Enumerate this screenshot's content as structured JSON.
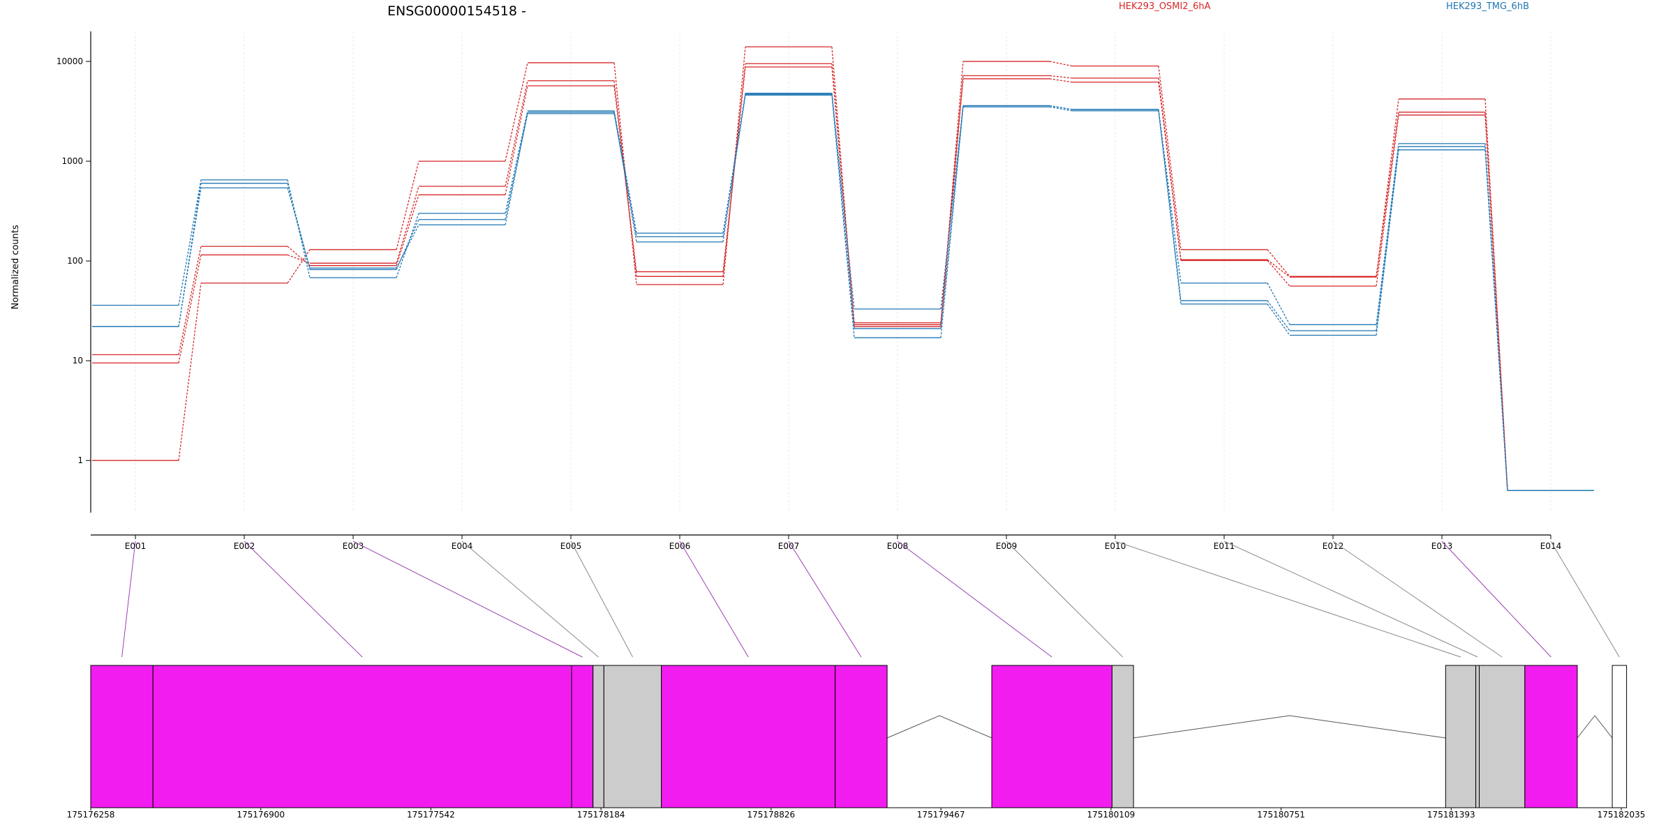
{
  "colors": {
    "osmi": "#d62728",
    "tmg": "#1f77b4",
    "exon_fill": "#f21cf0",
    "other_fill": "#cccccc",
    "grid": "#e8e8e8",
    "axis": "#000000",
    "connector_gray": "#888888",
    "connector_purple": "#9b3fb5",
    "intron": "#555555"
  },
  "chart_data": {
    "type": "line",
    "title": "ENSG00000154518 -",
    "ylabel": "Normalized counts",
    "yscale": "log",
    "ylim": [
      0.3,
      20000
    ],
    "yticks": [
      1,
      10,
      100,
      1000,
      10000
    ],
    "categories": [
      "E001",
      "E002",
      "E003",
      "E004",
      "E005",
      "E006",
      "E007",
      "E008",
      "E009",
      "E010",
      "E011",
      "E012",
      "E013",
      "E014"
    ],
    "legend": [
      {
        "label": "HEK293_OSMI2_6hA",
        "color": "#d62728"
      },
      {
        "label": "HEK293_TMG_6hB",
        "color": "#1f77b4"
      }
    ],
    "series": [
      {
        "group": "HEK293_OSMI2_6hA",
        "values": [
          1,
          60,
          130,
          1000,
          9700,
          58,
          14000,
          22,
          10000,
          9000,
          130,
          70,
          4200,
          0.5
        ]
      },
      {
        "group": "HEK293_OSMI2_6hA",
        "values": [
          9.5,
          115,
          95,
          560,
          6400,
          70,
          9500,
          23,
          7200,
          6800,
          103,
          69,
          3100,
          0.5
        ]
      },
      {
        "group": "HEK293_OSMI2_6hA",
        "values": [
          11.5,
          140,
          90,
          460,
          5700,
          78,
          8800,
          24,
          6700,
          6200,
          101,
          56,
          2900,
          0.5
        ]
      },
      {
        "group": "HEK293_TMG_6hB",
        "values": [
          36,
          650,
          68,
          300,
          3200,
          190,
          4800,
          33,
          3600,
          3300,
          60,
          23,
          1500,
          0.5
        ]
      },
      {
        "group": "HEK293_TMG_6hB",
        "values": [
          22,
          600,
          82,
          260,
          3000,
          175,
          4700,
          21,
          3600,
          3300,
          40,
          20,
          1400,
          0.5
        ]
      },
      {
        "group": "HEK293_TMG_6hB",
        "values": [
          22,
          540,
          85,
          230,
          3100,
          155,
          4600,
          17,
          3500,
          3200,
          37,
          18,
          1300,
          0.5
        ]
      }
    ],
    "genomic_ticks": [
      "175176258",
      "175176900",
      "175177542",
      "175178184",
      "175178826",
      "175179467",
      "175180109",
      "175180751",
      "175181393",
      "175182035"
    ],
    "gene_model": {
      "start": 175176258,
      "end": 175182035,
      "blocks": [
        {
          "start": 175176258,
          "end": 175176493,
          "type": "exon",
          "exon": "E001"
        },
        {
          "start": 175176493,
          "end": 175178073,
          "type": "exon",
          "exon": "E002"
        },
        {
          "start": 175178073,
          "end": 175178154,
          "type": "exon",
          "exon": "E003"
        },
        {
          "start": 175178154,
          "end": 175178195,
          "type": "other",
          "exon": "E004"
        },
        {
          "start": 175178195,
          "end": 175178412,
          "type": "other",
          "exon": "E005"
        },
        {
          "start": 175178412,
          "end": 175179068,
          "type": "exon",
          "exon": "E006"
        },
        {
          "start": 175179068,
          "end": 175179264,
          "type": "exon",
          "exon": "E007"
        },
        {
          "start": 175179659,
          "end": 175180113,
          "type": "exon",
          "exon": "E008"
        },
        {
          "start": 175180113,
          "end": 175180194,
          "type": "other",
          "exon": "E009"
        },
        {
          "start": 175181372,
          "end": 175181486,
          "type": "other",
          "exon": "E010"
        },
        {
          "start": 175181486,
          "end": 175181499,
          "type": "other",
          "exon": "E011"
        },
        {
          "start": 175181499,
          "end": 175181671,
          "type": "other",
          "exon": "E012"
        },
        {
          "start": 175181671,
          "end": 175181869,
          "type": "exon",
          "exon": "E013"
        },
        {
          "start": 175182001,
          "end": 175182055,
          "type": "empty",
          "exon": "E014"
        }
      ],
      "introns": [
        {
          "start": 175179264,
          "end": 175179659
        },
        {
          "start": 175180194,
          "end": 175181372
        },
        {
          "start": 175181869,
          "end": 175182001
        }
      ]
    }
  }
}
